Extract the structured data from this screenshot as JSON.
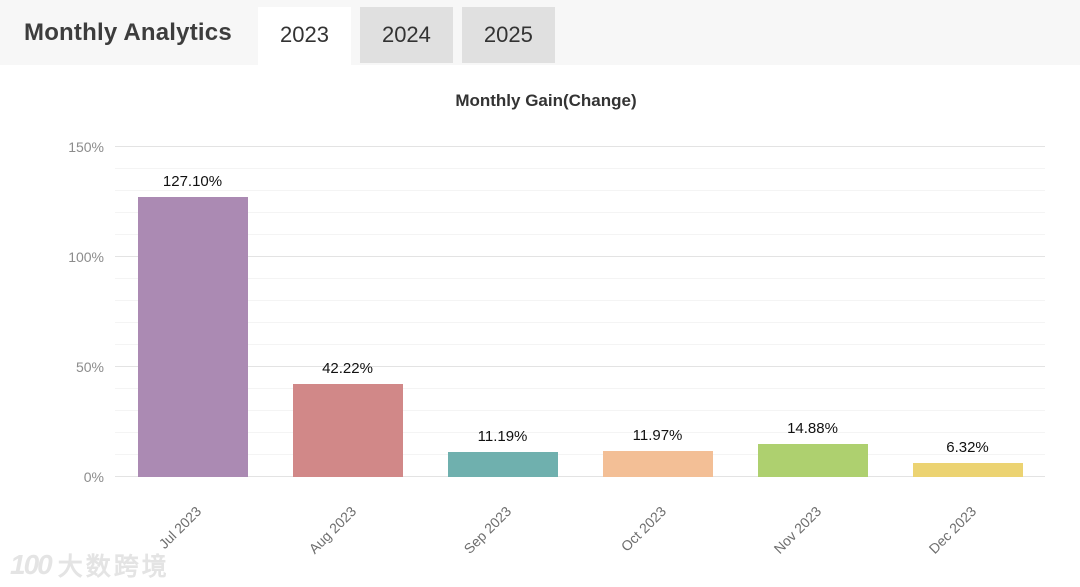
{
  "header": {
    "title": "Monthly Analytics",
    "tabs": [
      {
        "label": "2023",
        "active": true
      },
      {
        "label": "2024",
        "active": false
      },
      {
        "label": "2025",
        "active": false
      }
    ]
  },
  "chart_data": {
    "type": "bar",
    "title": "Monthly Gain(Change)",
    "categories": [
      "Jul 2023",
      "Aug 2023",
      "Sep 2023",
      "Oct 2023",
      "Nov 2023",
      "Dec 2023"
    ],
    "values": [
      127.1,
      42.22,
      11.19,
      11.97,
      14.88,
      6.32
    ],
    "value_labels": [
      "127.10%",
      "42.22%",
      "11.19%",
      "11.97%",
      "14.88%",
      "6.32%"
    ],
    "bar_colors": [
      "#ab8ab3",
      "#d18888",
      "#6fb0ae",
      "#f3bf96",
      "#aed06f",
      "#ecd372"
    ],
    "ylim": [
      0,
      150
    ],
    "yticks": [
      {
        "value": 0,
        "label": "0%"
      },
      {
        "value": 50,
        "label": "50%"
      },
      {
        "value": 100,
        "label": "100%"
      },
      {
        "value": 150,
        "label": "150%"
      }
    ],
    "minor_tick_step": 10,
    "grid": true,
    "xlabel": "",
    "ylabel": "",
    "x_label_rotation_deg": 45,
    "legend": "none"
  },
  "watermark": {
    "logo_text": "100",
    "brand_text": "大数跨境"
  },
  "colors": {
    "header_bg": "#f7f7f7",
    "active_tab_bg": "#ffffff",
    "inactive_tab_bg": "#e0e0e0",
    "major_grid": "#e3e3e3",
    "minor_grid": "#f4f4f4",
    "value_label": "#111111",
    "axis_label": "#8c8c8c"
  }
}
